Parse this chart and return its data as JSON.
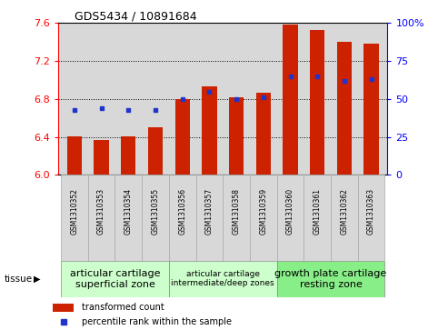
{
  "title": "GDS5434 / 10891684",
  "samples": [
    "GSM1310352",
    "GSM1310353",
    "GSM1310354",
    "GSM1310355",
    "GSM1310356",
    "GSM1310357",
    "GSM1310358",
    "GSM1310359",
    "GSM1310360",
    "GSM1310361",
    "GSM1310362",
    "GSM1310363"
  ],
  "bar_values": [
    6.41,
    6.37,
    6.41,
    6.5,
    6.8,
    6.93,
    6.82,
    6.87,
    7.58,
    7.53,
    7.4,
    7.38
  ],
  "percentile_values": [
    43,
    44,
    43,
    43,
    50,
    55,
    50,
    51,
    65,
    65,
    62,
    63
  ],
  "ylim_left": [
    6.0,
    7.6
  ],
  "ylim_right": [
    0,
    100
  ],
  "yticks_left": [
    6.0,
    6.4,
    6.8,
    7.2,
    7.6
  ],
  "yticks_right": [
    0,
    25,
    50,
    75,
    100
  ],
  "bar_color": "#cc2200",
  "dot_color": "#2233cc",
  "grid_color": "#000000",
  "tissue_groups": [
    {
      "label": "articular cartilage\nsuperficial zone",
      "start": 0,
      "end": 4,
      "color": "#ccffcc",
      "fontsize": 8
    },
    {
      "label": "articular cartilage\nintermediate/deep zones",
      "start": 4,
      "end": 8,
      "color": "#ccffcc",
      "fontsize": 6.5
    },
    {
      "label": "growth plate cartilage\nresting zone",
      "start": 8,
      "end": 12,
      "color": "#88ee88",
      "fontsize": 8
    }
  ],
  "tissue_label": "tissue",
  "legend_bar_label": "transformed count",
  "legend_dot_label": "percentile rank within the sample",
  "bar_width": 0.55,
  "base_value": 6.0
}
